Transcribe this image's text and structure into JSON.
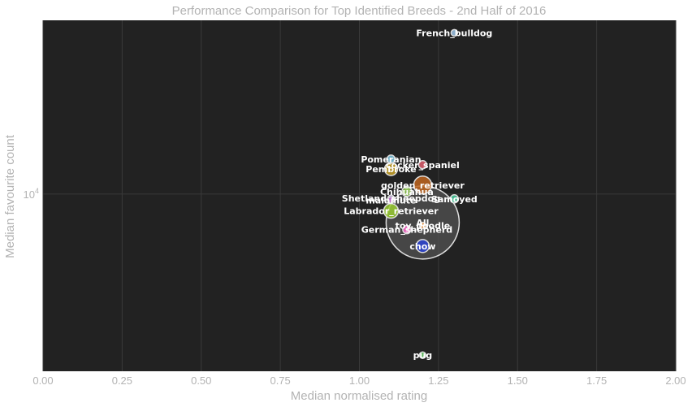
{
  "chart_data": {
    "type": "scatter",
    "title": "Performance Comparison for Top Identified Breeds - 2nd Half of 2016",
    "xlabel": "Median normalised rating",
    "ylabel": "Median favourite count",
    "xlim": [
      0,
      2
    ],
    "ylim": [
      3500,
      28000
    ],
    "yscale": "log",
    "x_ticks": [
      "0.00",
      "0.25",
      "0.50",
      "0.75",
      "1.00",
      "1.25",
      "1.50",
      "1.75",
      "2.00"
    ],
    "y_ticks": [
      {
        "value": 10000,
        "base": "10",
        "exp": "4"
      }
    ],
    "grid": true,
    "background": "#222222",
    "points": [
      {
        "label": "French_bulldog",
        "x": 1.3,
        "y": 26000,
        "size": 4,
        "color": "#9fc5e8"
      },
      {
        "label": "Pomeranian",
        "x": 1.1,
        "y": 12300,
        "size": 5,
        "color": "#7ec8e3"
      },
      {
        "label": "cocker_spaniel",
        "x": 1.2,
        "y": 11900,
        "size": 5,
        "color": "#e06070"
      },
      {
        "label": "Pembroke",
        "x": 1.1,
        "y": 11600,
        "size": 8,
        "color": "#c9a227"
      },
      {
        "label": "golden_retriever",
        "x": 1.2,
        "y": 10550,
        "size": 11,
        "color": "#c0651f"
      },
      {
        "label": "Chihuahua",
        "x": 1.15,
        "y": 10150,
        "size": 6,
        "color": "#8bc34a"
      },
      {
        "label": "Shetland_sheepdog",
        "x": 1.1,
        "y": 9750,
        "size": 4,
        "color": "#9575cd"
      },
      {
        "label": "malamute",
        "x": 1.1,
        "y": 9650,
        "size": 4,
        "color": "#ba68c8"
      },
      {
        "label": "Samoyed",
        "x": 1.3,
        "y": 9720,
        "size": 5,
        "color": "#4dd0a1"
      },
      {
        "label": "Labrador_retriever",
        "x": 1.1,
        "y": 9050,
        "size": 9,
        "color": "#9acd32"
      },
      {
        "label": "All",
        "x": 1.2,
        "y": 8450,
        "size": 45,
        "color": "#555555"
      },
      {
        "label": "toy_poodle",
        "x": 1.2,
        "y": 8300,
        "size": 4,
        "color": "#ff9f43"
      },
      {
        "label": "German_shepherd",
        "x": 1.15,
        "y": 8100,
        "size": 5,
        "color": "#ff66cc"
      },
      {
        "label": "chow",
        "x": 1.2,
        "y": 7350,
        "size": 8,
        "color": "#2b44d4"
      },
      {
        "label": "pug",
        "x": 1.2,
        "y": 3850,
        "size": 4,
        "color": "#66cc66"
      }
    ]
  }
}
